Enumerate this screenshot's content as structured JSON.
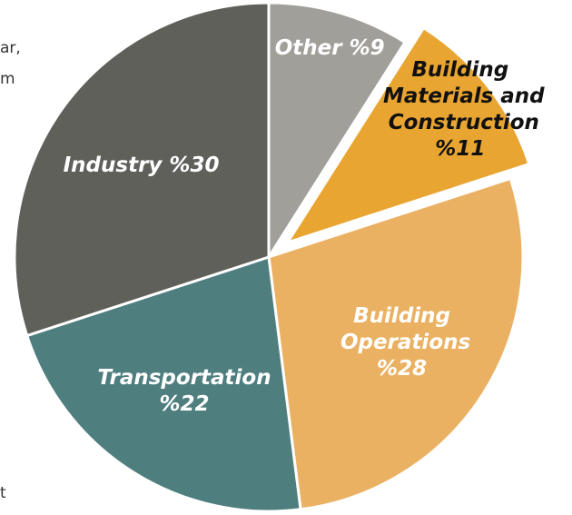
{
  "chart_data": {
    "type": "pie",
    "categories": [
      "Other",
      "Building Materials and Construction",
      "Building Operations",
      "Transportation",
      "Industry"
    ],
    "values": [
      9,
      11,
      28,
      22,
      30
    ],
    "value_labels": [
      "%9",
      "%11",
      "%28",
      "%22",
      "%30"
    ],
    "colors": [
      "#a19f99",
      "#e9a532",
      "#ebb163",
      "#4f7e7f",
      "#60605b"
    ],
    "label_colors": [
      "#ffffff",
      "#111111",
      "#ffffff",
      "#ffffff",
      "#ffffff"
    ],
    "exploded": [
      false,
      true,
      false,
      false,
      false
    ],
    "start_angle": 0,
    "direction": "clockwise"
  },
  "side_text": [
    "ar,",
    "m",
    "t"
  ]
}
